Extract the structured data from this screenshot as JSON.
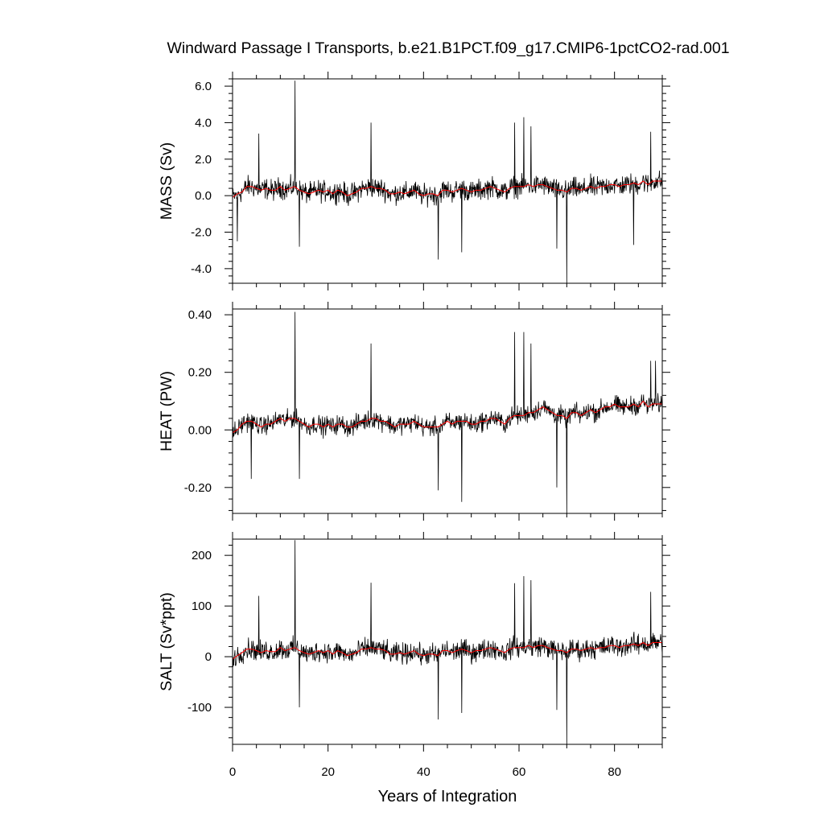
{
  "chart_data": {
    "type": "line",
    "title": "Windward Passage I Transports, b.e21.B1PCT.f09_g17.CMIP6-1pctCO2-rad.001",
    "xlabel": "Years of Integration",
    "xlim": [
      0,
      90
    ],
    "xticks": [
      0,
      20,
      40,
      60,
      80
    ],
    "xtick_labels": [
      "0",
      "20",
      "40",
      "60",
      "80"
    ],
    "colors": {
      "monthly": "#000000",
      "smoothed": "#ff0000"
    },
    "grid": false,
    "panels": [
      {
        "ylabel": "MASS (Sv)",
        "ylim": [
          -4.8,
          6.4
        ],
        "yticks": [
          -4.0,
          -2.0,
          0.0,
          2.0,
          4.0,
          6.0
        ],
        "ytick_labels": [
          "-4.0",
          "-2.0",
          "0.0",
          "2.0",
          "4.0",
          "6.0"
        ],
        "scale": 0.85,
        "smooth": [
          -0.1,
          0.1,
          0.2,
          0.5,
          0.5,
          0.4,
          0.3,
          0.4,
          0.3,
          0.3,
          0.5,
          0.3,
          0.4,
          0.5,
          0.3,
          0.2,
          0.1,
          0.2,
          0.3,
          0.2,
          0.3,
          0.1,
          0.3,
          0.2,
          0.0,
          0.1,
          0.2,
          0.4,
          0.4,
          0.5,
          0.4,
          0.4,
          0.3,
          0.1,
          0.1,
          0.2,
          0.1,
          0.2,
          0.3,
          0.1,
          0.0,
          0.1,
          0.1,
          0.0,
          0.3,
          0.3,
          0.2,
          0.3,
          0.4,
          0.3,
          0.2,
          0.3,
          0.3,
          0.4,
          0.5,
          0.4,
          0.3,
          0.2,
          0.4,
          0.5,
          0.5,
          0.5,
          0.6,
          0.5,
          0.6,
          0.6,
          0.5,
          0.4,
          0.3,
          0.3,
          0.2,
          0.4,
          0.4,
          0.3,
          0.4,
          0.5,
          0.4,
          0.5,
          0.5,
          0.6,
          0.6,
          0.5,
          0.6,
          0.6,
          0.7,
          0.6,
          0.8,
          0.6,
          0.8,
          0.8,
          0.8
        ],
        "spikes": [
          [
            13.1,
            6.3
          ],
          [
            5.5,
            3.4
          ],
          [
            29.0,
            4.0
          ],
          [
            59.1,
            4.0
          ],
          [
            61.0,
            4.3
          ],
          [
            62.5,
            3.8
          ],
          [
            87.6,
            3.5
          ],
          [
            70.0,
            -4.8
          ],
          [
            43.1,
            -3.5
          ],
          [
            48.0,
            -3.1
          ],
          [
            67.9,
            -2.9
          ],
          [
            14.0,
            -2.8
          ],
          [
            1.0,
            -2.5
          ],
          [
            84.0,
            -2.7
          ]
        ]
      },
      {
        "ylabel": "HEAT (PW)",
        "ylim": [
          -0.29,
          0.42
        ],
        "yticks": [
          -0.2,
          0.0,
          0.2,
          0.4
        ],
        "ytick_labels": [
          "-0.20",
          "0.00",
          "0.20",
          "0.40"
        ],
        "scale": 0.048,
        "smooth": [
          -0.01,
          0.0,
          0.02,
          0.03,
          0.03,
          0.02,
          0.01,
          0.02,
          0.02,
          0.03,
          0.04,
          0.03,
          0.04,
          0.04,
          0.03,
          0.02,
          0.01,
          0.02,
          0.02,
          0.01,
          0.02,
          0.01,
          0.02,
          0.02,
          0.01,
          0.01,
          0.02,
          0.03,
          0.03,
          0.04,
          0.04,
          0.03,
          0.03,
          0.02,
          0.01,
          0.02,
          0.02,
          0.02,
          0.03,
          0.02,
          0.01,
          0.01,
          0.01,
          0.01,
          0.02,
          0.03,
          0.02,
          0.03,
          0.03,
          0.03,
          0.02,
          0.02,
          0.03,
          0.03,
          0.04,
          0.04,
          0.03,
          0.02,
          0.04,
          0.05,
          0.05,
          0.05,
          0.06,
          0.06,
          0.07,
          0.08,
          0.07,
          0.06,
          0.05,
          0.05,
          0.04,
          0.06,
          0.06,
          0.05,
          0.06,
          0.07,
          0.06,
          0.07,
          0.08,
          0.08,
          0.09,
          0.08,
          0.08,
          0.08,
          0.09,
          0.08,
          0.1,
          0.08,
          0.09,
          0.09,
          0.09
        ],
        "spikes": [
          [
            13.1,
            0.41
          ],
          [
            29.0,
            0.3
          ],
          [
            59.1,
            0.34
          ],
          [
            61.0,
            0.34
          ],
          [
            62.5,
            0.3
          ],
          [
            87.6,
            0.24
          ],
          [
            88.6,
            0.24
          ],
          [
            70.0,
            -0.29
          ],
          [
            43.1,
            -0.21
          ],
          [
            48.0,
            -0.25
          ],
          [
            67.9,
            -0.2
          ],
          [
            14.0,
            -0.17
          ],
          [
            3.9,
            -0.17
          ]
        ]
      },
      {
        "ylabel": "SALT (Sv*ppt)",
        "ylim": [
          -173,
          232
        ],
        "yticks": [
          -100,
          0,
          100,
          200
        ],
        "ytick_labels": [
          "-100",
          "0",
          "100",
          "200"
        ],
        "scale": 30,
        "smooth": [
          -5,
          2,
          8,
          15,
          15,
          12,
          8,
          12,
          10,
          10,
          18,
          12,
          15,
          18,
          12,
          8,
          5,
          8,
          12,
          8,
          12,
          5,
          12,
          8,
          2,
          5,
          8,
          15,
          15,
          18,
          15,
          15,
          12,
          5,
          5,
          8,
          5,
          8,
          12,
          5,
          2,
          5,
          5,
          2,
          12,
          12,
          8,
          12,
          15,
          12,
          8,
          12,
          12,
          15,
          18,
          15,
          12,
          8,
          15,
          18,
          18,
          18,
          22,
          18,
          22,
          22,
          18,
          15,
          12,
          12,
          8,
          15,
          15,
          12,
          15,
          18,
          15,
          18,
          18,
          22,
          22,
          18,
          22,
          22,
          25,
          22,
          28,
          22,
          28,
          28,
          28
        ],
        "spikes": [
          [
            13.1,
            230
          ],
          [
            5.5,
            120
          ],
          [
            29.0,
            146
          ],
          [
            59.1,
            145
          ],
          [
            61.0,
            159
          ],
          [
            62.5,
            151
          ],
          [
            87.6,
            128
          ],
          [
            70.0,
            -173
          ],
          [
            43.1,
            -124
          ],
          [
            48.0,
            -111
          ],
          [
            67.9,
            -105
          ],
          [
            14.0,
            -100
          ]
        ]
      }
    ]
  }
}
